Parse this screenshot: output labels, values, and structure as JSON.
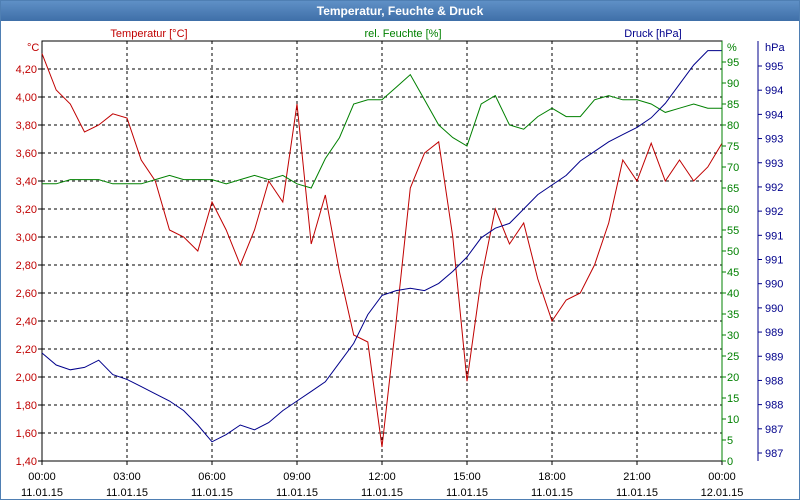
{
  "window": {
    "title": "Temperatur, Feuchte & Druck"
  },
  "chart_data": {
    "type": "line",
    "title": "Temperatur, Feuchte & Druck",
    "grid": true,
    "x_labels": [
      {
        "time": "00:00",
        "date": "11.01.15"
      },
      {
        "time": "03:00",
        "date": "11.01.15"
      },
      {
        "time": "06:00",
        "date": "11.01.15"
      },
      {
        "time": "09:00",
        "date": "11.01.15"
      },
      {
        "time": "12:00",
        "date": "11.01.15"
      },
      {
        "time": "15:00",
        "date": "11.01.15"
      },
      {
        "time": "18:00",
        "date": "11.01.15"
      },
      {
        "time": "21:00",
        "date": "11.01.15"
      },
      {
        "time": "00:00",
        "date": "12.01.15"
      }
    ],
    "x_range_hours": [
      0,
      24
    ],
    "axes": {
      "temperature": {
        "title": "Temperatur [°C]",
        "unit": "°C",
        "color": "#c00000",
        "ylim": [
          1.4,
          4.4
        ],
        "ticks": [
          "1,40",
          "1,60",
          "1,80",
          "2,00",
          "2,20",
          "2,40",
          "2,60",
          "2,80",
          "3,00",
          "3,20",
          "3,40",
          "3,60",
          "3,80",
          "4,00",
          "4,20"
        ]
      },
      "humidity": {
        "title": "rel. Feuchte [%]",
        "unit": "%",
        "color": "#008000",
        "ylim": [
          0,
          100
        ],
        "ticks": [
          "0",
          "5",
          "10",
          "15",
          "20",
          "25",
          "30",
          "35",
          "40",
          "45",
          "50",
          "55",
          "60",
          "65",
          "70",
          "75",
          "80",
          "85",
          "90",
          "95"
        ]
      },
      "pressure": {
        "title": "Druck [hPa]",
        "unit": "hPa",
        "color": "#00008b",
        "ylim": [
          986.75,
          995.5
        ],
        "ticks": [
          "987",
          "987",
          "988",
          "988",
          "989",
          "989",
          "990",
          "990",
          "991",
          "991",
          "992",
          "992",
          "993",
          "993",
          "994",
          "994",
          "995"
        ]
      }
    },
    "series": [
      {
        "name": "Temperatur [°C]",
        "axis": "temperature",
        "color": "#c00000",
        "x": [
          0,
          0.5,
          1,
          1.5,
          2,
          2.5,
          3,
          3.5,
          4,
          4.5,
          5,
          5.5,
          6,
          6.5,
          7,
          7.5,
          8,
          8.5,
          9,
          9.5,
          10,
          10.5,
          11,
          11.5,
          12,
          12.5,
          13,
          13.5,
          14,
          14.5,
          15,
          15.5,
          16,
          16.5,
          17,
          17.5,
          18,
          18.5,
          19,
          19.5,
          20,
          20.5,
          21,
          21.5,
          22,
          22.5,
          23,
          23.5,
          24
        ],
        "values": [
          4.31,
          4.05,
          3.95,
          3.75,
          3.8,
          3.88,
          3.85,
          3.55,
          3.4,
          3.05,
          3.0,
          2.9,
          3.25,
          3.05,
          2.8,
          3.05,
          3.4,
          3.25,
          3.95,
          2.95,
          3.3,
          2.75,
          2.3,
          2.25,
          1.5,
          2.4,
          3.35,
          3.6,
          3.68,
          3.0,
          1.97,
          2.7,
          3.2,
          2.95,
          3.1,
          2.7,
          2.4,
          2.55,
          2.6,
          2.8,
          3.1,
          3.55,
          3.4,
          3.67,
          3.4,
          3.55,
          3.4,
          3.5,
          3.67
        ]
      },
      {
        "name": "rel. Feuchte [%]",
        "axis": "humidity",
        "color": "#008000",
        "x": [
          0,
          0.5,
          1,
          1.5,
          2,
          2.5,
          3,
          3.5,
          4,
          4.5,
          5,
          5.5,
          6,
          6.5,
          7,
          7.5,
          8,
          8.5,
          9,
          9.5,
          10,
          10.5,
          11,
          11.5,
          12,
          12.5,
          13,
          13.5,
          14,
          14.5,
          15,
          15.5,
          16,
          16.5,
          17,
          17.5,
          18,
          18.5,
          19,
          19.5,
          20,
          20.5,
          21,
          21.5,
          22,
          22.5,
          23,
          23.5,
          24
        ],
        "values": [
          66,
          66,
          67,
          67,
          67,
          66,
          66,
          66,
          67,
          68,
          67,
          67,
          67,
          66,
          67,
          68,
          67,
          68,
          66,
          65,
          72,
          77,
          85,
          86,
          86,
          89,
          92,
          86,
          80,
          77,
          75,
          85,
          87,
          80,
          79,
          82,
          84,
          82,
          82,
          86,
          87,
          86,
          86,
          85,
          83,
          84,
          85,
          84,
          84
        ]
      },
      {
        "name": "Druck [hPa]",
        "axis": "pressure",
        "color": "#00008b",
        "x": [
          0,
          0.5,
          1,
          1.5,
          2,
          2.5,
          3,
          3.5,
          4,
          4.5,
          5,
          5.5,
          6,
          6.5,
          7,
          7.5,
          8,
          8.5,
          9,
          9.5,
          10,
          10.5,
          11,
          11.5,
          12,
          12.5,
          13,
          13.5,
          14,
          14.5,
          15,
          15.5,
          16,
          16.5,
          17,
          17.5,
          18,
          18.5,
          19,
          19.5,
          20,
          20.5,
          21,
          21.5,
          22,
          22.5,
          23,
          23.5,
          24
        ],
        "values": [
          989,
          988.75,
          988.65,
          988.7,
          988.85,
          988.55,
          988.45,
          988.3,
          988.15,
          988.0,
          987.8,
          987.5,
          987.15,
          987.3,
          987.5,
          987.4,
          987.55,
          987.8,
          988.0,
          988.2,
          988.4,
          988.8,
          989.2,
          989.8,
          990.2,
          990.3,
          990.35,
          990.3,
          990.45,
          990.7,
          991.0,
          991.4,
          991.6,
          991.7,
          992.0,
          992.3,
          992.5,
          992.7,
          993.0,
          993.2,
          993.4,
          993.55,
          993.7,
          993.9,
          994.2,
          994.6,
          995.0,
          995.3,
          995.3
        ]
      }
    ]
  }
}
